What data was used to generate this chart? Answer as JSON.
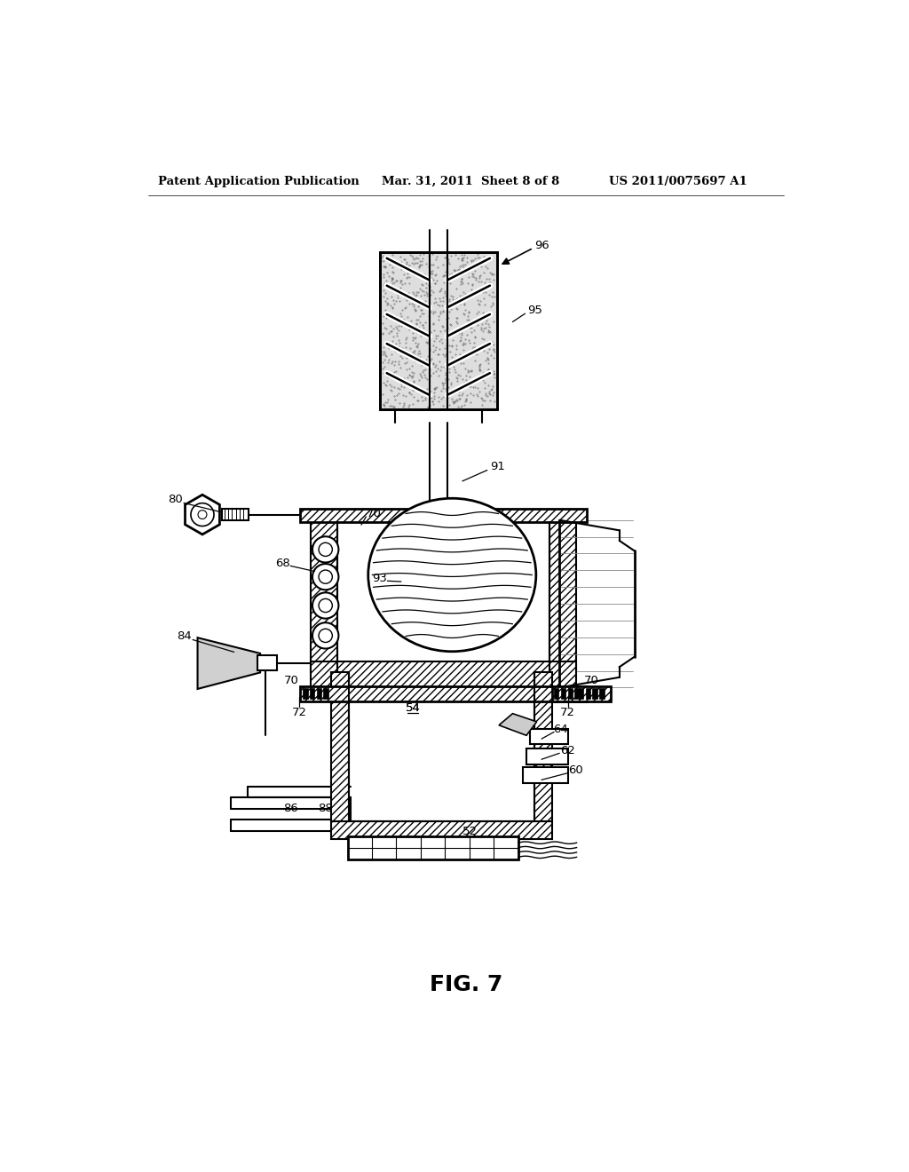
{
  "bg_color": "#ffffff",
  "header_left": "Patent Application Publication",
  "header_center": "Mar. 31, 2011  Sheet 8 of 8",
  "header_right": "US 2011/0075697 A1",
  "figure_label": "FIG. 7"
}
